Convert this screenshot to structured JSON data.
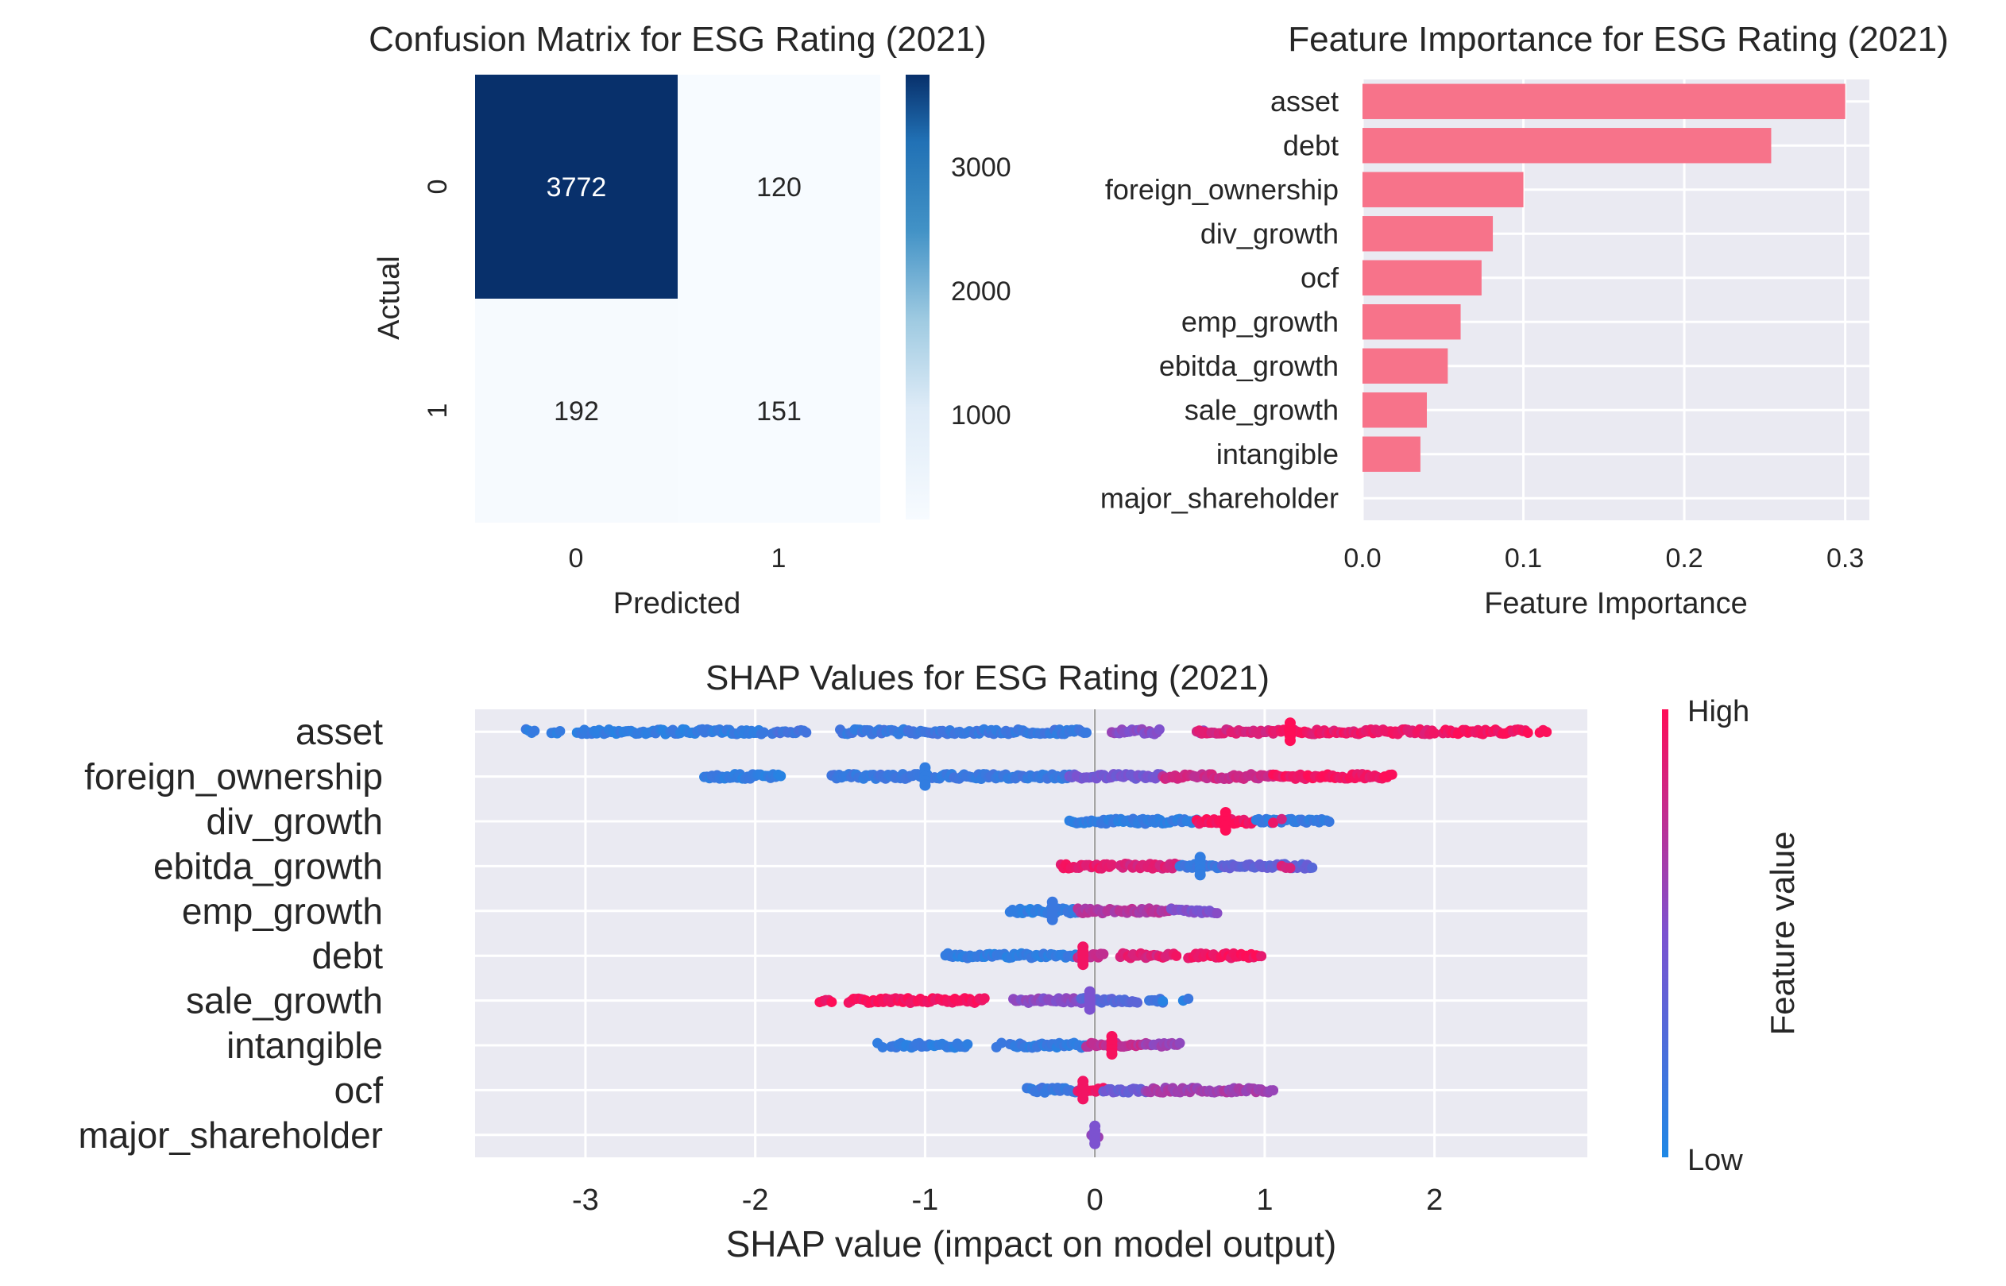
{
  "colors": {
    "axes_bg": "#eaeaf2",
    "grid": "#ffffff",
    "bar": "#f7738a",
    "cm_dark": "#08306b",
    "cm_light": "#f7fbff",
    "shap_high": "#ff0d57",
    "shap_low": "#1e88e5",
    "text": "#262626"
  },
  "chart_data": [
    {
      "type": "heatmap",
      "title": "Confusion Matrix for ESG Rating (2021)",
      "xlabel": "Predicted",
      "ylabel": "Actual",
      "x_categories": [
        "0",
        "1"
      ],
      "y_categories": [
        "0",
        "1"
      ],
      "values": [
        [
          3772,
          120
        ],
        [
          192,
          151
        ]
      ],
      "colorbar": {
        "ticks": [
          "1000",
          "2000",
          "3000"
        ],
        "range": [
          120,
          3772
        ],
        "colormap": "Blues"
      }
    },
    {
      "type": "bar",
      "orientation": "horizontal",
      "title": "Feature Importance for ESG Rating (2021)",
      "xlabel": "Feature Importance",
      "ylabel": "",
      "categories": [
        "asset",
        "debt",
        "foreign_ownership",
        "div_growth",
        "ocf",
        "emp_growth",
        "ebitda_growth",
        "sale_growth",
        "intangible",
        "major_shareholder"
      ],
      "values": [
        0.3,
        0.254,
        0.1,
        0.081,
        0.074,
        0.061,
        0.053,
        0.04,
        0.036,
        0.0
      ],
      "xlim": [
        0,
        0.315
      ],
      "xticks": [
        "0.0",
        "0.1",
        "0.2",
        "0.3"
      ],
      "grid": true
    },
    {
      "type": "scatter",
      "title": "SHAP Values for ESG Rating (2021)",
      "xlabel": "SHAP value (impact on model output)",
      "ylabel": "",
      "categories": [
        "asset",
        "foreign_ownership",
        "div_growth",
        "ebitda_growth",
        "emp_growth",
        "debt",
        "sale_growth",
        "intangible",
        "ocf",
        "major_shareholder"
      ],
      "xlim": [
        -3.65,
        2.9
      ],
      "xticks": [
        "-3",
        "-2",
        "-1",
        "0",
        "1",
        "2"
      ],
      "colorbar": {
        "title": "Feature value",
        "high_label": "High",
        "low_label": "Low"
      },
      "series": [
        {
          "ranges": [
            [
              -3.35,
              -3.3,
              0.1
            ],
            [
              -3.2,
              -3.15,
              0.1
            ],
            [
              -3.05,
              -1.95,
              0.1
            ],
            [
              -1.9,
              -1.7,
              0.2
            ],
            [
              -1.5,
              -0.05,
              0.15
            ],
            [
              0.1,
              0.38,
              0.55
            ],
            [
              0.62,
              0.66,
              0.5
            ],
            [
              0.6,
              1.05,
              0.85
            ],
            [
              1.05,
              1.25,
              0.95
            ],
            [
              1.25,
              2.0,
              0.92
            ],
            [
              2.05,
              2.55,
              0.97
            ],
            [
              2.62,
              2.66,
              1.0
            ]
          ],
          "cluster": [
            1.15,
            1.0
          ]
        },
        {
          "ranges": [
            [
              -2.3,
              -1.85,
              0.1
            ],
            [
              -1.55,
              -0.15,
              0.15
            ],
            [
              -0.15,
              0.4,
              0.45
            ],
            [
              0.4,
              1.05,
              0.8
            ],
            [
              1.05,
              1.75,
              0.95
            ]
          ],
          "cluster": [
            -1.0,
            0.1
          ]
        },
        {
          "ranges": [
            [
              -0.15,
              0.6,
              0.1
            ],
            [
              0.6,
              0.95,
              0.95
            ],
            [
              0.95,
              1.38,
              0.12
            ],
            [
              1.05,
              1.07,
              0.9
            ],
            [
              1.1,
              1.12,
              0.88
            ]
          ],
          "cluster": [
            0.77,
            1.0
          ]
        },
        {
          "ranges": [
            [
              -0.2,
              0.1,
              0.92
            ],
            [
              0.15,
              0.5,
              0.85
            ],
            [
              0.5,
              0.75,
              0.15
            ],
            [
              0.75,
              1.28,
              0.35
            ],
            [
              1.1,
              1.15,
              0.85
            ]
          ],
          "cluster": [
            0.62,
            0.1
          ]
        },
        {
          "ranges": [
            [
              -0.5,
              -0.1,
              0.1
            ],
            [
              -0.1,
              0.45,
              0.7
            ],
            [
              0.45,
              0.72,
              0.5
            ]
          ],
          "cluster": [
            -0.25,
            0.15
          ]
        },
        {
          "ranges": [
            [
              -0.88,
              -0.1,
              0.1
            ],
            [
              -0.1,
              0.05,
              0.8
            ],
            [
              0.15,
              0.3,
              0.9
            ],
            [
              0.3,
              0.38,
              0.85
            ],
            [
              0.4,
              0.48,
              0.9
            ],
            [
              0.55,
              0.98,
              0.96
            ]
          ],
          "cluster": [
            -0.07,
            0.95
          ]
        },
        {
          "ranges": [
            [
              -1.62,
              -1.55,
              0.95
            ],
            [
              -1.45,
              -0.65,
              0.97
            ],
            [
              -0.48,
              -0.08,
              0.55
            ],
            [
              -0.08,
              0.25,
              0.3
            ],
            [
              0.32,
              0.4,
              0.15
            ],
            [
              0.4,
              0.4,
              0.1
            ],
            [
              0.52,
              0.55,
              0.1
            ]
          ],
          "cluster": [
            -0.03,
            0.5
          ]
        },
        {
          "ranges": [
            [
              -1.28,
              -1.25,
              0.1
            ],
            [
              -1.2,
              -0.75,
              0.1
            ],
            [
              -0.58,
              -0.55,
              0.1
            ],
            [
              -0.5,
              -0.05,
              0.12
            ],
            [
              -0.05,
              0.3,
              0.75
            ],
            [
              0.3,
              0.5,
              0.6
            ]
          ],
          "cluster": [
            0.1,
            0.97
          ]
        },
        {
          "ranges": [
            [
              -0.4,
              -0.1,
              0.15
            ],
            [
              -0.1,
              0.05,
              0.95
            ],
            [
              0.05,
              0.3,
              0.4
            ],
            [
              0.3,
              1.05,
              0.65
            ]
          ],
          "cluster": [
            -0.07,
            0.95
          ]
        },
        {
          "ranges": [
            [
              -0.02,
              0.02,
              0.6
            ]
          ],
          "cluster": [
            0.0,
            0.5
          ]
        }
      ]
    }
  ]
}
